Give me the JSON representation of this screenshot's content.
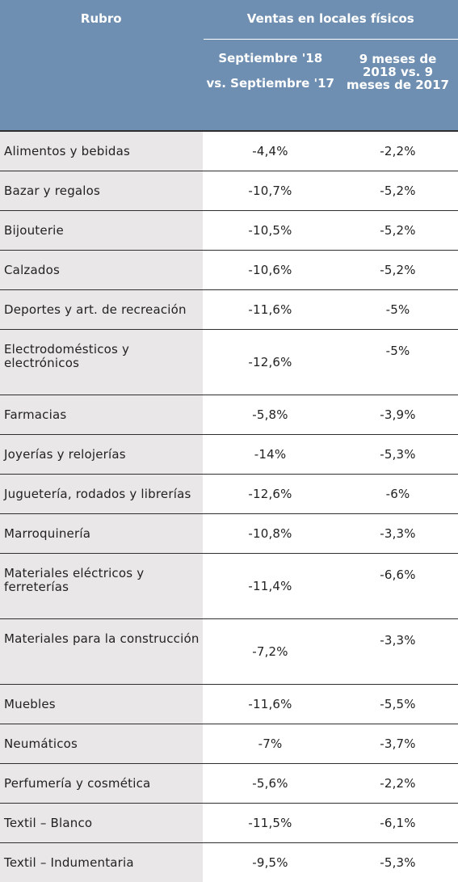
{
  "header": {
    "rubro": "Rubro",
    "group": "Ventas en locales físicos",
    "col_sep_line1": "Septiembre '18",
    "col_sep_line2": "vs. Septiembre '17",
    "col_9m": "9 meses de 2018 vs. 9 meses de 2017"
  },
  "rows": [
    {
      "rubro": "Alimentos y bebidas",
      "sep": "-4,4%",
      "nueve": "-2,2%"
    },
    {
      "rubro": "Bazar y regalos",
      "sep": "-10,7%",
      "nueve": "-5,2%"
    },
    {
      "rubro": "Bijouterie",
      "sep": "-10,5%",
      "nueve": "-5,2%"
    },
    {
      "rubro": "Calzados",
      "sep": "-10,6%",
      "nueve": "-5,2%"
    },
    {
      "rubro": "Deportes y art. de recreación",
      "sep": "-11,6%",
      "nueve": "-5%"
    },
    {
      "rubro": "Electrodomésticos y electrónicos",
      "sep": "-12,6%",
      "nueve": "-5%"
    },
    {
      "rubro": "Farmacias",
      "sep": "-5,8%",
      "nueve": "-3,9%"
    },
    {
      "rubro": "Joyerías y relojerías",
      "sep": "-14%",
      "nueve": "-5,3%"
    },
    {
      "rubro": "Juguetería, rodados y librerías",
      "sep": "-12,6%",
      "nueve": "-6%"
    },
    {
      "rubro": "Marroquinería",
      "sep": "-10,8%",
      "nueve": "-3,3%"
    },
    {
      "rubro": "Materiales eléctricos y ferreterías",
      "sep": "-11,4%",
      "nueve": "-6,6%"
    },
    {
      "rubro": "Materiales para la construcción",
      "sep": "-7,2%",
      "nueve": "-3,3%"
    },
    {
      "rubro": "Muebles",
      "sep": "-11,6%",
      "nueve": "-5,5%"
    },
    {
      "rubro": "Neumáticos",
      "sep": "-7%",
      "nueve": "-3,7%"
    },
    {
      "rubro": "Perfumería y cosmética",
      "sep": "-5,6%",
      "nueve": "-2,2%"
    },
    {
      "rubro": "Textil – Blanco",
      "sep": "-11,5%",
      "nueve": "-6,1%"
    },
    {
      "rubro": "Textil – Indumentaria",
      "sep": "-9,5%",
      "nueve": "-5,3%"
    }
  ]
}
